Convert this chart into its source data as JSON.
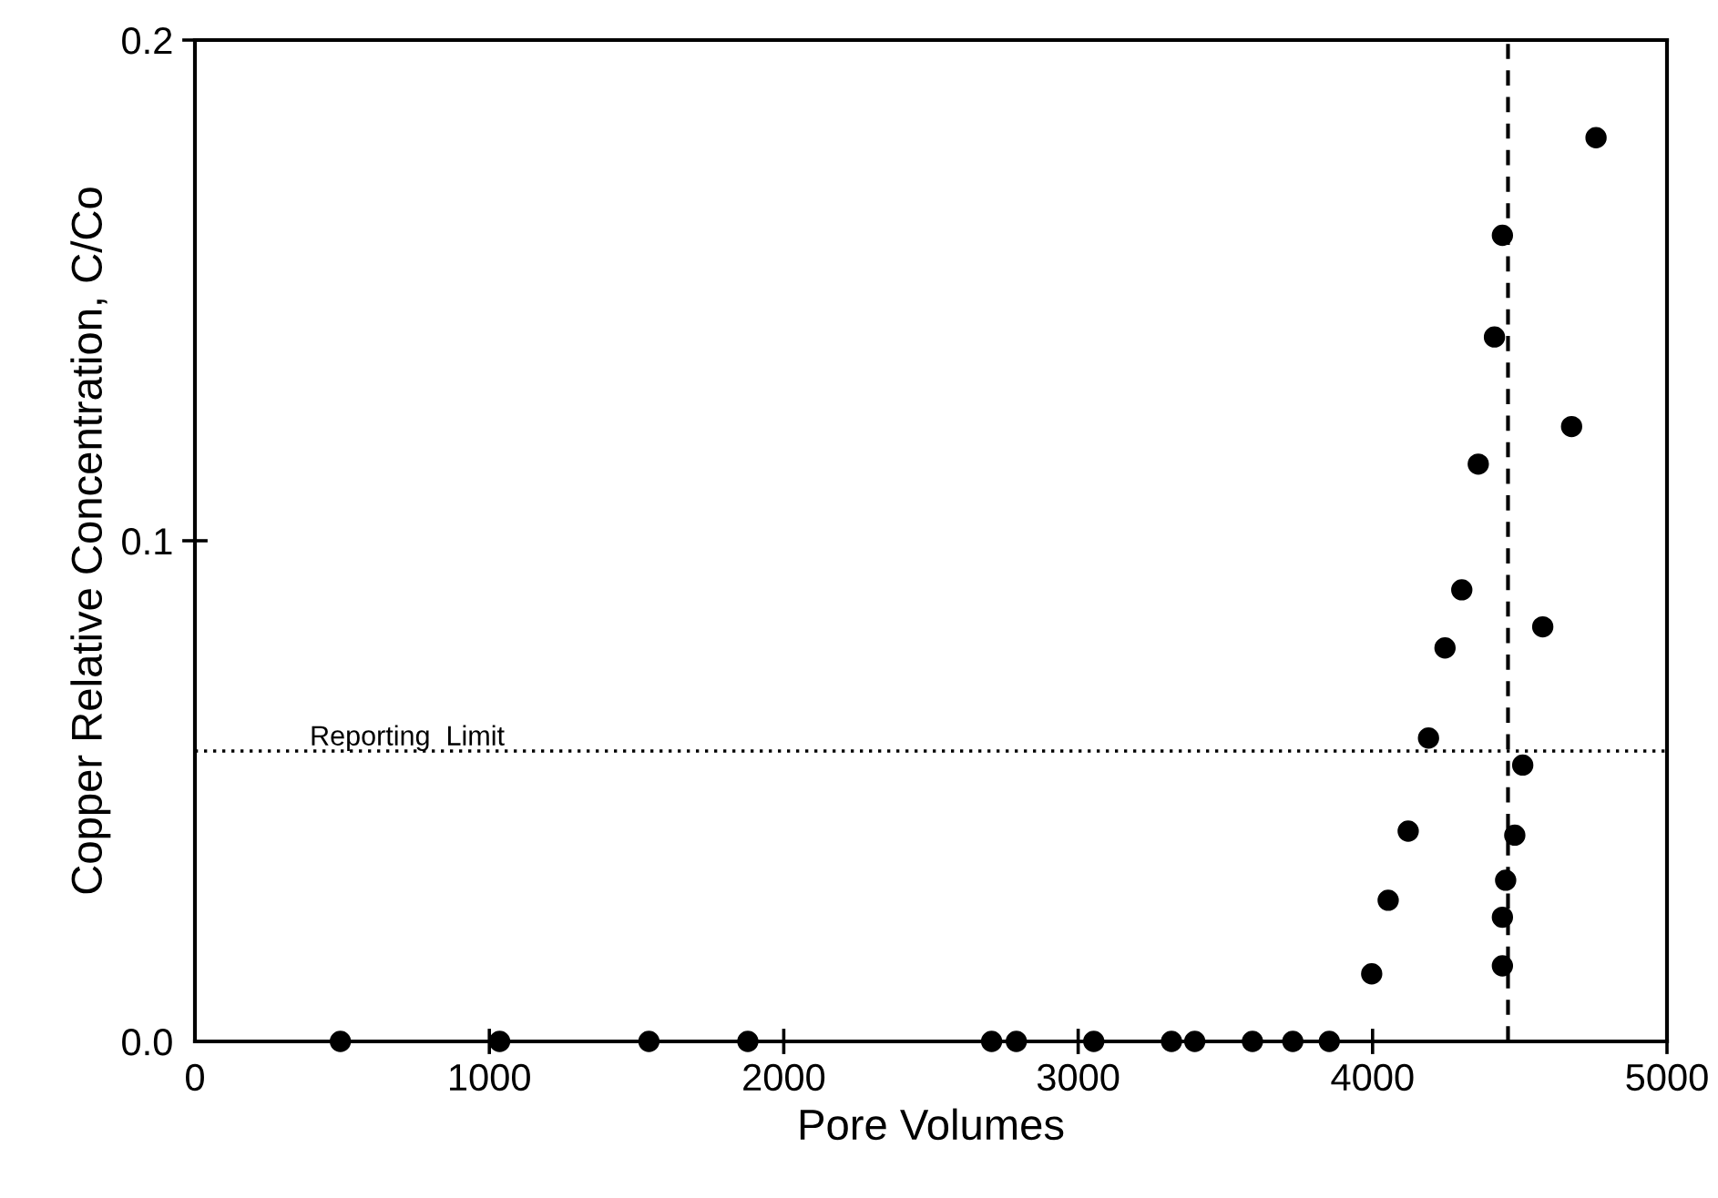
{
  "chart_data": {
    "type": "scatter",
    "xlabel": "Pore Volumes",
    "ylabel": "Copper Relative Concentration, C/Co",
    "xlim": [
      0,
      5000
    ],
    "xticks": [
      0,
      1000,
      2000,
      3000,
      4000,
      5000
    ],
    "ylim": [
      0,
      0.2
    ],
    "yticks": [
      {
        "value": 0,
        "label": "0.0"
      },
      0.1,
      0.2
    ],
    "grid": false,
    "marker": "circle",
    "series": [
      {
        "color": "#000000",
        "x": [
          494,
          1035,
          1542,
          1878,
          2706,
          2790,
          3053,
          3317,
          3396,
          3592,
          3729,
          3853,
          3997,
          4053,
          4121,
          4190,
          4246,
          4303,
          4359,
          4414,
          4441,
          4441,
          4441,
          4452,
          4483,
          4510,
          4578,
          4676,
          4759
        ],
        "values": [
          0,
          0,
          0,
          0,
          0,
          0,
          0,
          0,
          0,
          0,
          0,
          0,
          0.0135,
          0.0282,
          0.042,
          0.0606,
          0.0786,
          0.0902,
          0.1153,
          0.1407,
          0.161,
          0.0248,
          0.0151,
          0.0322,
          0.0412,
          0.0552,
          0.0828,
          0.1228,
          0.1805
        ]
      }
    ],
    "ref_lines": [
      {
        "axis": "y",
        "value": 0.058,
        "label": "Reporting  Limit",
        "line_style": "dotted"
      },
      {
        "axis": "x",
        "value": 4460,
        "line_style": "dashed"
      }
    ]
  }
}
